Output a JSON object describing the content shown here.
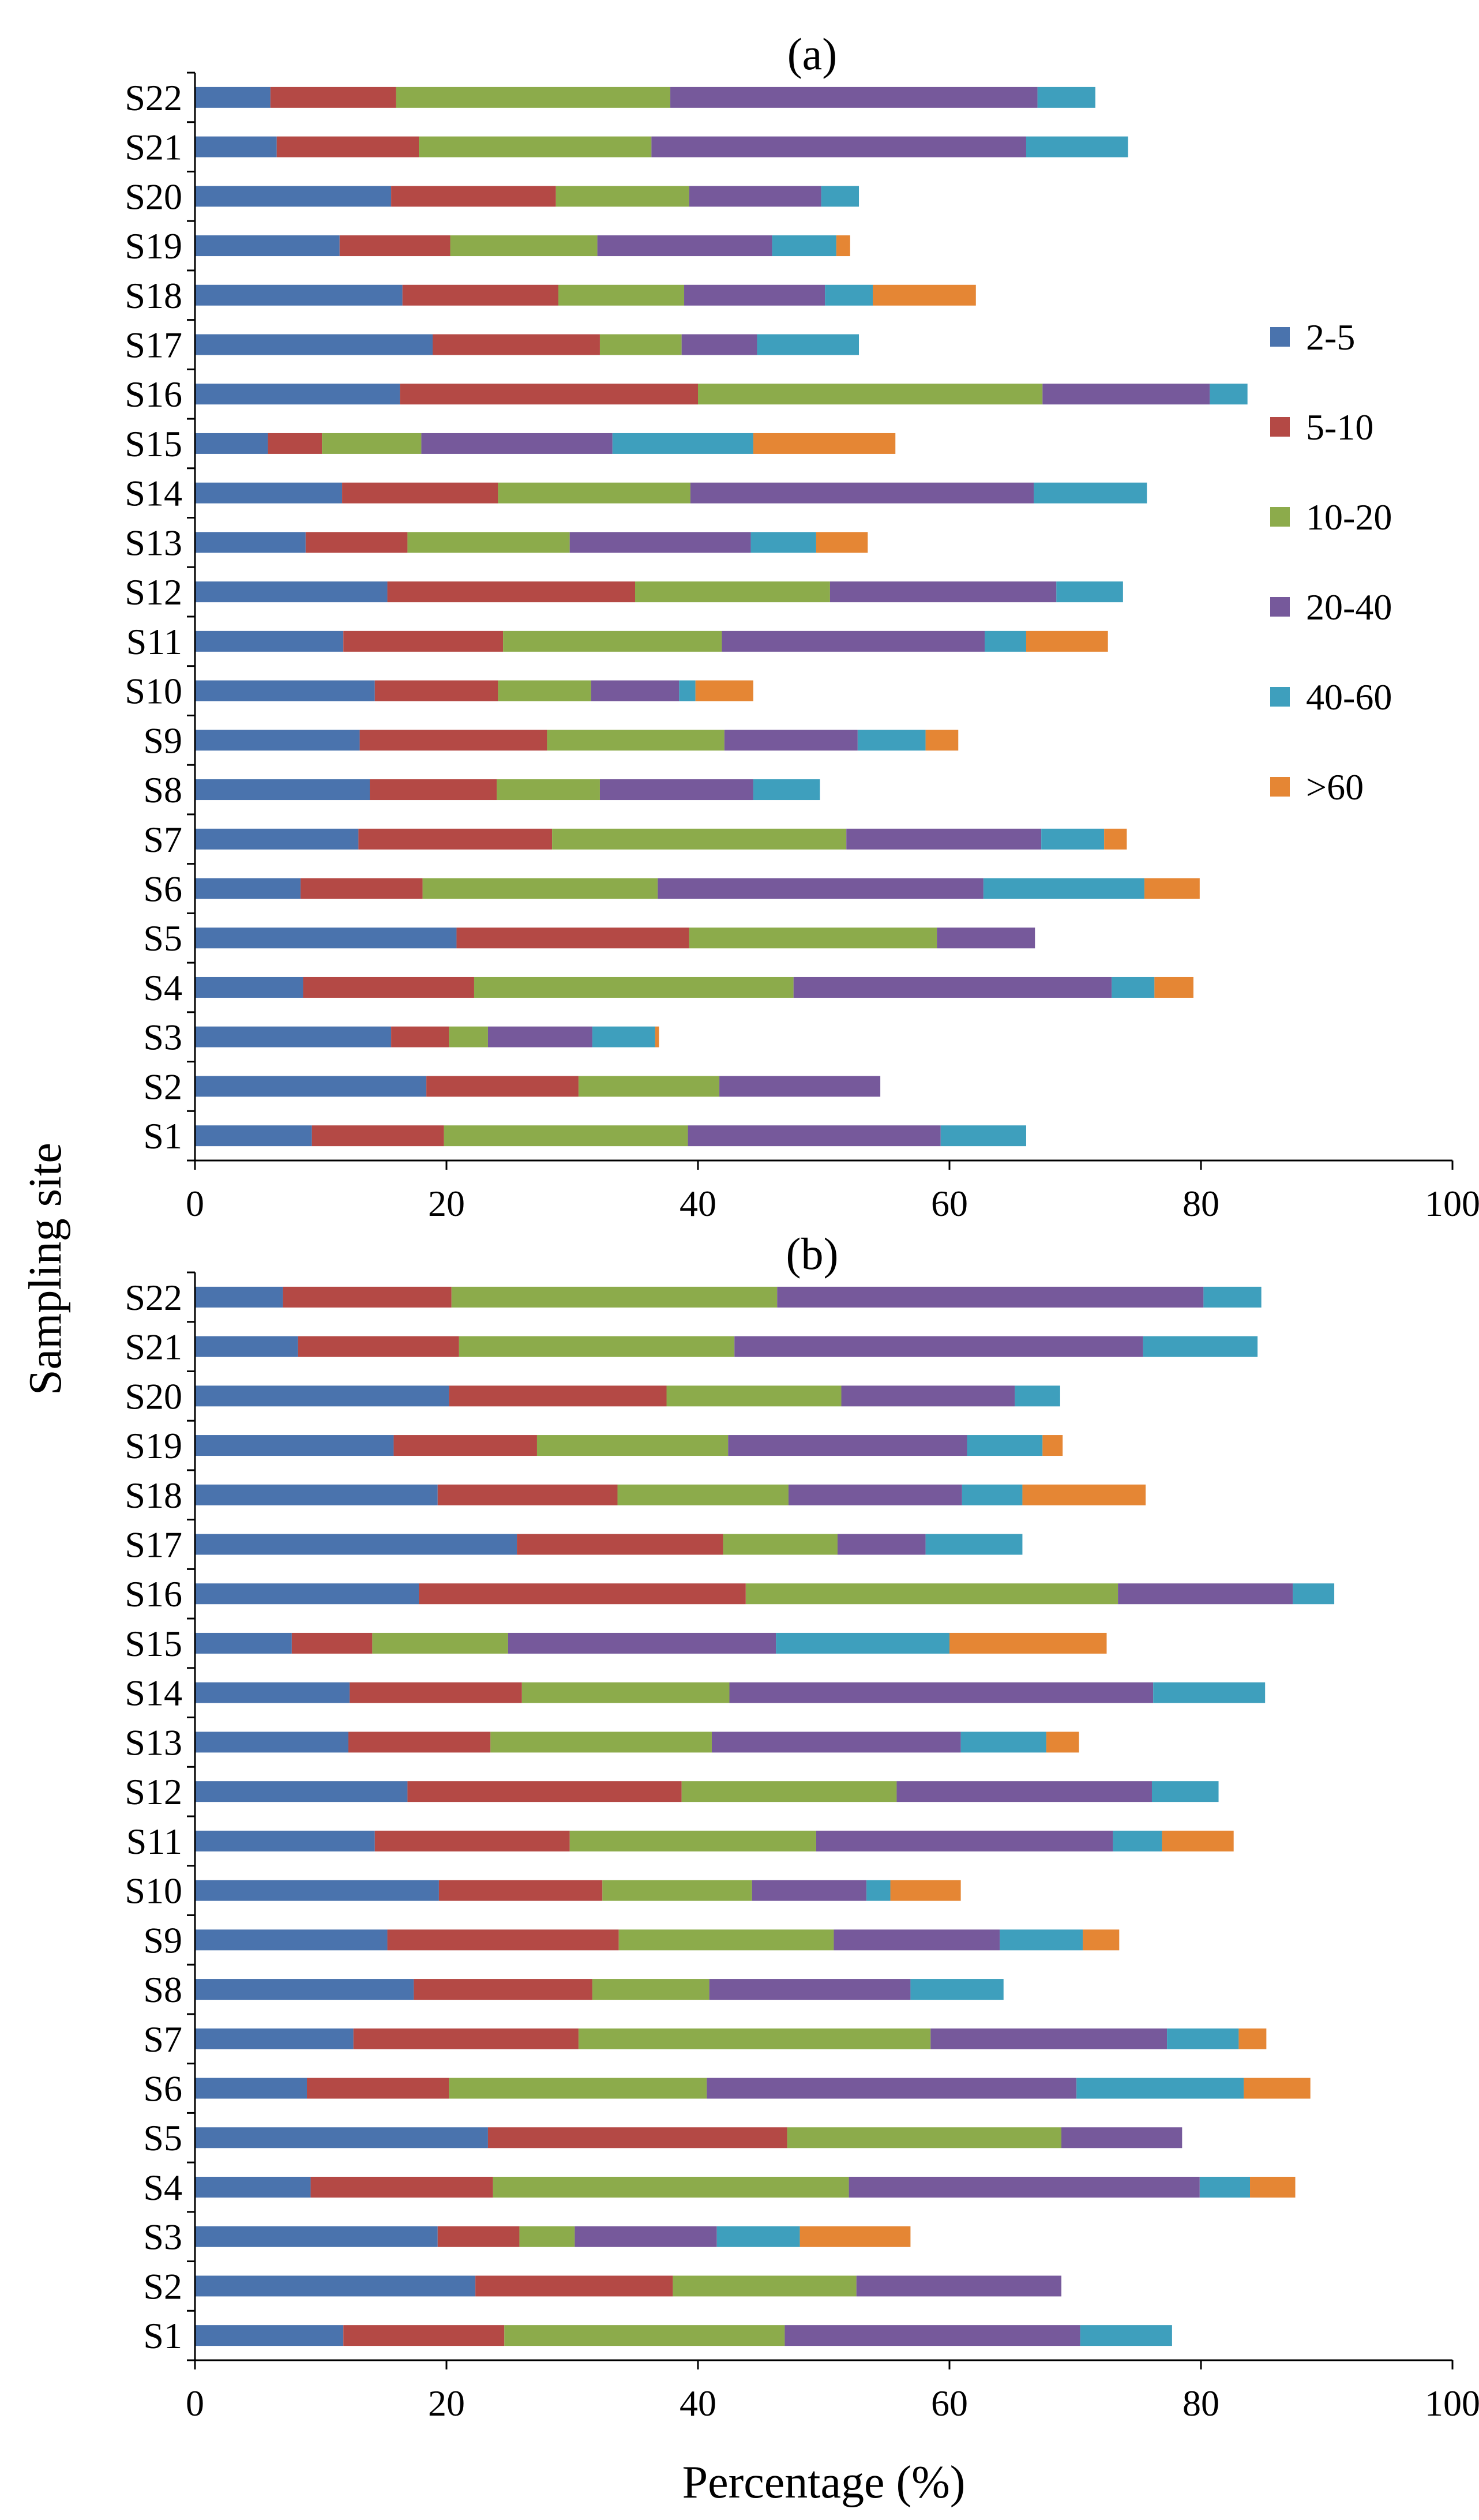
{
  "figure": {
    "ylabel": "Sampling site",
    "xlabel": "Percentage (%)"
  },
  "legend": {
    "items": [
      "2-5",
      "5-10",
      "10-20",
      "20-40",
      "40-60",
      ">60"
    ],
    "colors": [
      "#4a73ad",
      "#b44945",
      "#8cab4b",
      "#76599b",
      "#3e9fbd",
      "#e58634"
    ]
  },
  "chart_data": [
    {
      "type": "bar",
      "orientation": "horizontal",
      "stacked": true,
      "title": "(a)",
      "xlabel": "",
      "ylabel": "Sampling site",
      "xlim": [
        0,
        100
      ],
      "xticks": [
        0,
        20,
        40,
        60,
        80,
        100
      ],
      "categories": [
        "S1",
        "S2",
        "S3",
        "S4",
        "S5",
        "S6",
        "S7",
        "S8",
        "S9",
        "S10",
        "S11",
        "S12",
        "S13",
        "S14",
        "S15",
        "S16",
        "S17",
        "S18",
        "S19",
        "S20",
        "S21",
        "S22"
      ],
      "series": [
        {
          "name": "2-5",
          "values": [
            9.3,
            18.4,
            15.6,
            8.6,
            20.8,
            8.4,
            13.0,
            13.9,
            13.1,
            14.3,
            11.8,
            15.3,
            8.8,
            11.7,
            5.8,
            16.3,
            18.9,
            16.5,
            11.5,
            15.6,
            6.5,
            6.0
          ]
        },
        {
          "name": "5-10",
          "values": [
            10.5,
            12.1,
            4.6,
            13.6,
            18.5,
            9.7,
            15.4,
            10.1,
            14.9,
            9.8,
            12.7,
            19.7,
            8.1,
            12.4,
            4.3,
            23.7,
            13.3,
            12.4,
            8.8,
            13.1,
            11.3,
            10.0
          ]
        },
        {
          "name": "10-20",
          "values": [
            19.4,
            11.2,
            3.1,
            25.4,
            19.7,
            18.7,
            23.4,
            8.2,
            14.1,
            7.4,
            17.4,
            15.5,
            12.9,
            15.3,
            7.9,
            27.4,
            6.5,
            10.0,
            11.7,
            10.6,
            18.5,
            21.8
          ]
        },
        {
          "name": "20-40",
          "values": [
            20.1,
            12.8,
            8.3,
            25.3,
            7.8,
            25.9,
            15.5,
            12.2,
            10.6,
            7.0,
            20.9,
            18.0,
            14.4,
            27.3,
            15.2,
            13.3,
            6.0,
            11.2,
            13.9,
            10.5,
            29.8,
            29.2
          ]
        },
        {
          "name": "40-60",
          "values": [
            6.8,
            0.0,
            5.0,
            3.4,
            0.0,
            12.8,
            5.0,
            5.3,
            5.4,
            1.3,
            3.3,
            5.3,
            5.2,
            9.0,
            11.2,
            3.0,
            8.1,
            3.8,
            5.1,
            3.0,
            8.1,
            4.6
          ]
        },
        {
          "name": ">60",
          "values": [
            0.0,
            0.0,
            0.3,
            3.1,
            0.0,
            4.4,
            1.8,
            0.0,
            2.6,
            4.6,
            6.5,
            0.0,
            4.1,
            0.0,
            11.3,
            0.0,
            0.0,
            8.2,
            1.1,
            0.0,
            0.0,
            0.0
          ]
        }
      ]
    },
    {
      "type": "bar",
      "orientation": "horizontal",
      "stacked": true,
      "title": "(b)",
      "xlabel": "Percentage (%)",
      "ylabel": "Sampling site",
      "xlim": [
        0,
        100
      ],
      "xticks": [
        0,
        20,
        40,
        60,
        80,
        100
      ],
      "categories": [
        "S1",
        "S2",
        "S3",
        "S4",
        "S5",
        "S6",
        "S7",
        "S8",
        "S9",
        "S10",
        "S11",
        "S12",
        "S13",
        "S14",
        "S15",
        "S16",
        "S17",
        "S18",
        "S19",
        "S20",
        "S21",
        "S22"
      ],
      "series": [
        {
          "name": "2-5",
          "values": [
            11.8,
            22.3,
            19.3,
            9.2,
            23.3,
            8.9,
            12.6,
            17.4,
            15.3,
            19.4,
            14.3,
            16.9,
            12.2,
            12.3,
            7.7,
            17.8,
            25.6,
            19.3,
            15.8,
            20.2,
            8.2,
            7.0
          ]
        },
        {
          "name": "5-10",
          "values": [
            12.8,
            15.7,
            6.5,
            14.5,
            23.8,
            11.3,
            17.9,
            14.2,
            18.4,
            13.0,
            15.5,
            21.8,
            11.3,
            13.7,
            6.4,
            26.0,
            16.4,
            14.3,
            11.4,
            17.3,
            12.8,
            13.4
          ]
        },
        {
          "name": "10-20",
          "values": [
            22.3,
            14.6,
            4.4,
            28.3,
            21.8,
            20.5,
            28.0,
            9.3,
            17.1,
            11.9,
            19.6,
            17.1,
            17.6,
            16.5,
            10.8,
            29.6,
            9.1,
            13.6,
            15.2,
            13.9,
            21.9,
            25.9
          ]
        },
        {
          "name": "20-40",
          "values": [
            23.5,
            16.3,
            11.3,
            27.9,
            9.6,
            29.4,
            18.8,
            16.0,
            13.2,
            9.1,
            23.6,
            20.3,
            19.8,
            33.7,
            21.3,
            13.9,
            7.0,
            13.8,
            19.0,
            13.8,
            32.5,
            33.9
          ]
        },
        {
          "name": "40-60",
          "values": [
            7.3,
            0.0,
            6.6,
            4.0,
            0.0,
            13.3,
            5.7,
            7.4,
            6.6,
            1.9,
            3.9,
            5.3,
            6.8,
            8.9,
            13.8,
            3.3,
            7.7,
            4.8,
            6.0,
            3.6,
            9.1,
            4.6
          ]
        },
        {
          "name": ">60",
          "values": [
            0.0,
            0.0,
            8.8,
            3.6,
            0.0,
            5.3,
            2.2,
            0.0,
            2.9,
            5.6,
            5.7,
            0.0,
            2.6,
            0.0,
            12.5,
            0.0,
            0.0,
            9.8,
            1.6,
            0.0,
            0.0,
            0.0
          ]
        }
      ]
    }
  ]
}
